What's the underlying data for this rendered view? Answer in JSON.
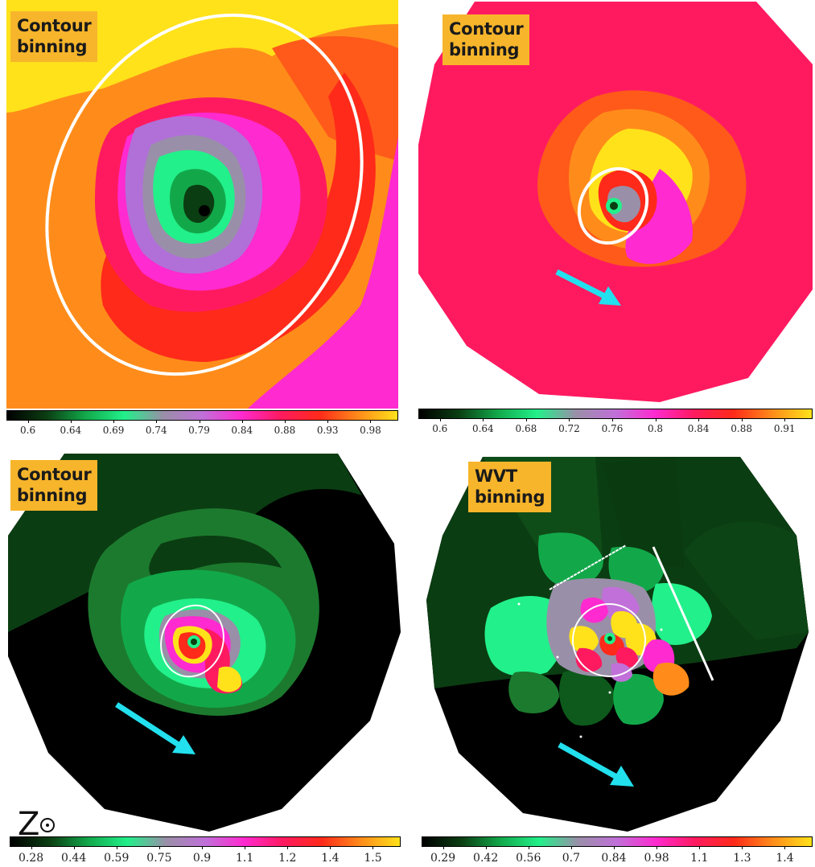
{
  "panels": [
    {
      "label": "Contour\nbinning",
      "colorbar": {
        "ticks": [
          "0.6",
          "0.64",
          "0.69",
          "0.74",
          "0.79",
          "0.84",
          "0.88",
          "0.93",
          "0.98"
        ],
        "colormap": [
          "#000000",
          "#0b3d12",
          "#12a84a",
          "#22f08a",
          "#9a8fa8",
          "#c070d8",
          "#ff2ad0",
          "#ff1a60",
          "#ff2a1a",
          "#ff8c1a",
          "#ffe21a"
        ]
      }
    },
    {
      "label": "Contour\nbinning",
      "colorbar": {
        "ticks": [
          "0.6",
          "0.64",
          "0.68",
          "0.72",
          "0.76",
          "0.8",
          "0.84",
          "0.88",
          "0.91"
        ],
        "colormap": [
          "#000000",
          "#0b3d12",
          "#12a84a",
          "#22f08a",
          "#9a8fa8",
          "#c070d8",
          "#ff2ad0",
          "#ff1a60",
          "#ff2a1a",
          "#ff8c1a",
          "#ffe21a"
        ]
      }
    },
    {
      "label": "Contour\nbinning",
      "colorbar": {
        "ticks": [
          "0.28",
          "0.44",
          "0.59",
          "0.75",
          "0.9",
          "1.1",
          "1.2",
          "1.4",
          "1.5"
        ],
        "colormap": [
          "#000000",
          "#0b3d12",
          "#12a84a",
          "#22f08a",
          "#9a8fa8",
          "#c070d8",
          "#ff2ad0",
          "#ff1a60",
          "#ff2a1a",
          "#ff8c1a",
          "#ffe21a"
        ]
      }
    },
    {
      "label": "WVT\nbinning",
      "colorbar": {
        "ticks": [
          "0.29",
          "0.42",
          "0.56",
          "0.7",
          "0.84",
          "0.98",
          "1.1",
          "1.3",
          "1.4"
        ],
        "colormap": [
          "#000000",
          "#0b3d12",
          "#12a84a",
          "#22f08a",
          "#9a8fa8",
          "#c070d8",
          "#ff2ad0",
          "#ff1a60",
          "#ff2a1a",
          "#ff8c1a",
          "#ffe21a"
        ]
      }
    }
  ],
  "symbol": {
    "text": "Z"
  },
  "colors": {
    "label_bg": "#f7b52b",
    "arrow": "#22e0ee",
    "ellipse": "#ffffff"
  }
}
